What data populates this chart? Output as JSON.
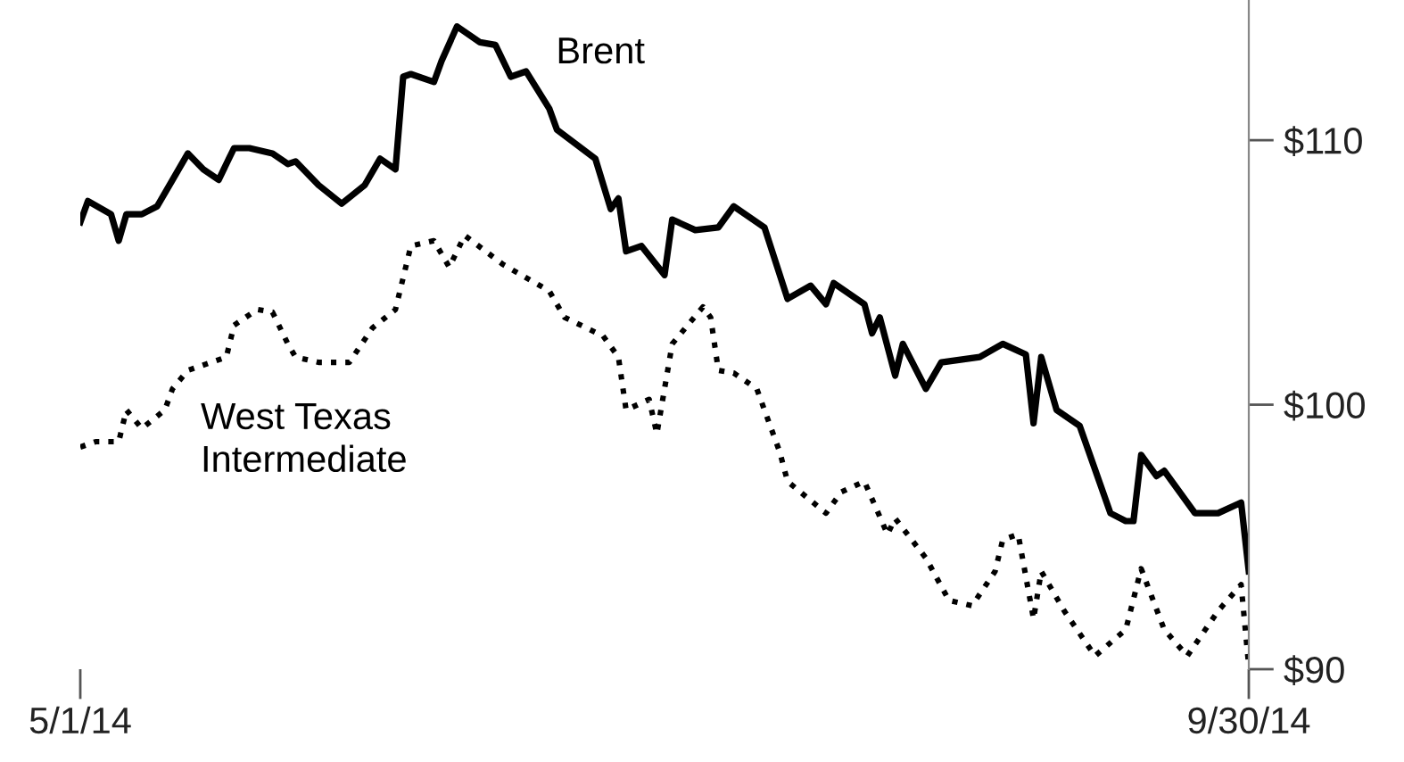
{
  "chart_data": {
    "type": "line",
    "xlim": [
      "2014-05-01",
      "2014-09-30"
    ],
    "ylim": [
      90,
      115.3
    ],
    "xticks": [
      {
        "value": "2014-05-01",
        "label": "5/1/14"
      },
      {
        "value": "2014-09-30",
        "label": "9/30/14"
      }
    ],
    "yticks": [
      {
        "value": 90,
        "label": "$90"
      },
      {
        "value": 100,
        "label": "$100"
      },
      {
        "value": 110,
        "label": "$110"
      }
    ],
    "legend": false,
    "marker": "none",
    "series": [
      {
        "name": "Brent",
        "color": "#000000",
        "line_style": "solid",
        "x": [
          "2014-05-01",
          "2014-05-02",
          "2014-05-05",
          "2014-05-06",
          "2014-05-07",
          "2014-05-09",
          "2014-05-11",
          "2014-05-13",
          "2014-05-15",
          "2014-05-17",
          "2014-05-19",
          "2014-05-21",
          "2014-05-23",
          "2014-05-26",
          "2014-05-28",
          "2014-05-29",
          "2014-06-01",
          "2014-06-04",
          "2014-06-07",
          "2014-06-09",
          "2014-06-11",
          "2014-06-12",
          "2014-06-13",
          "2014-06-16",
          "2014-06-17",
          "2014-06-19",
          "2014-06-22",
          "2014-06-24",
          "2014-06-26",
          "2014-06-28",
          "2014-07-01",
          "2014-07-02",
          "2014-07-07",
          "2014-07-09",
          "2014-07-10",
          "2014-07-11",
          "2014-07-13",
          "2014-07-16",
          "2014-07-17",
          "2014-07-20",
          "2014-07-23",
          "2014-07-25",
          "2014-07-29",
          "2014-08-01",
          "2014-08-04",
          "2014-08-06",
          "2014-08-07",
          "2014-08-11",
          "2014-08-12",
          "2014-08-13",
          "2014-08-15",
          "2014-08-16",
          "2014-08-19",
          "2014-08-21",
          "2014-08-26",
          "2014-08-29",
          "2014-09-01",
          "2014-09-02",
          "2014-09-03",
          "2014-09-05",
          "2014-09-08",
          "2014-09-12",
          "2014-09-14",
          "2014-09-15",
          "2014-09-16",
          "2014-09-18",
          "2014-09-19",
          "2014-09-23",
          "2014-09-26",
          "2014-09-29",
          "2014-09-30"
        ],
        "values": [
          106.9,
          107.7,
          107.2,
          106.2,
          107.2,
          107.2,
          107.5,
          108.5,
          109.5,
          108.9,
          108.5,
          109.7,
          109.7,
          109.5,
          109.1,
          109.2,
          108.3,
          107.6,
          108.3,
          109.3,
          108.9,
          112.4,
          112.5,
          112.2,
          113.0,
          114.3,
          113.7,
          113.6,
          112.4,
          112.6,
          111.2,
          110.4,
          109.3,
          107.4,
          107.8,
          105.8,
          106.0,
          104.9,
          107.0,
          106.6,
          106.7,
          107.5,
          106.7,
          104.0,
          104.5,
          103.8,
          104.6,
          103.8,
          102.7,
          103.3,
          101.1,
          102.3,
          100.6,
          101.6,
          101.8,
          102.3,
          101.9,
          99.3,
          101.8,
          99.8,
          99.2,
          95.9,
          95.6,
          95.6,
          98.1,
          97.3,
          97.5,
          95.9,
          95.9,
          96.3,
          93.7
        ]
      },
      {
        "name": "West Texas\nIntermediate",
        "color": "#000000",
        "line_style": "dotted",
        "x": [
          "2014-05-01",
          "2014-05-03",
          "2014-05-06",
          "2014-05-07",
          "2014-05-09",
          "2014-05-12",
          "2014-05-13",
          "2014-05-15",
          "2014-05-20",
          "2014-05-21",
          "2014-05-24",
          "2014-05-26",
          "2014-05-28",
          "2014-05-29",
          "2014-06-01",
          "2014-06-05",
          "2014-06-08",
          "2014-06-11",
          "2014-06-13",
          "2014-06-16",
          "2014-06-18",
          "2014-06-20",
          "2014-06-25",
          "2014-07-01",
          "2014-07-03",
          "2014-07-08",
          "2014-07-10",
          "2014-07-11",
          "2014-07-14",
          "2014-07-15",
          "2014-07-17",
          "2014-07-21",
          "2014-07-22",
          "2014-07-23",
          "2014-07-25",
          "2014-07-28",
          "2014-07-31",
          "2014-08-01",
          "2014-08-06",
          "2014-08-08",
          "2014-08-11",
          "2014-08-14",
          "2014-08-15",
          "2014-08-19",
          "2014-08-22",
          "2014-08-25",
          "2014-08-28",
          "2014-08-29",
          "2014-08-31",
          "2014-09-02",
          "2014-09-03",
          "2014-09-06",
          "2014-09-10",
          "2014-09-14",
          "2014-09-16",
          "2014-09-19",
          "2014-09-22",
          "2014-09-26",
          "2014-09-29",
          "2014-09-30"
        ],
        "values": [
          98.4,
          98.6,
          98.6,
          99.8,
          99.1,
          99.8,
          100.6,
          101.3,
          101.8,
          103.0,
          103.6,
          103.5,
          102.3,
          101.8,
          101.6,
          101.6,
          102.9,
          103.6,
          106.0,
          106.2,
          105.2,
          106.4,
          105.3,
          104.3,
          103.3,
          102.6,
          101.8,
          99.8,
          100.2,
          98.9,
          102.3,
          103.7,
          103.3,
          101.3,
          101.2,
          100.6,
          98.2,
          97.1,
          95.9,
          96.7,
          97.1,
          95.1,
          95.7,
          94.2,
          92.6,
          92.4,
          93.7,
          94.9,
          95.1,
          91.9,
          93.7,
          92.2,
          90.5,
          91.5,
          93.8,
          91.5,
          90.5,
          92.2,
          93.2,
          90.1
        ]
      }
    ]
  }
}
